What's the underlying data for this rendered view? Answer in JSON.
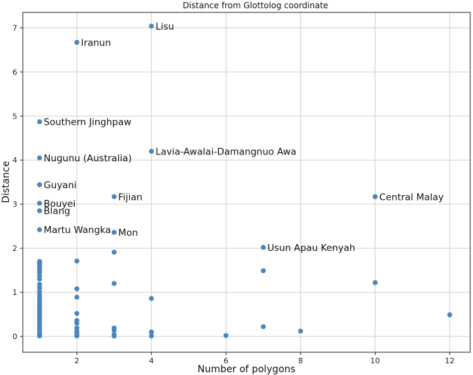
{
  "chart_data": {
    "type": "scatter",
    "title": "Distance from Glottolog coordinate",
    "xlabel": "Number of polygons",
    "ylabel": "Distance",
    "xlim": [
      0.55,
      12.55
    ],
    "ylim": [
      -0.36,
      7.35
    ],
    "xticks": [
      2,
      4,
      6,
      8,
      10,
      12
    ],
    "yticks": [
      0,
      1,
      2,
      3,
      4,
      5,
      6,
      7
    ],
    "grid": true,
    "color": "#4a86bb",
    "labeled_points": [
      {
        "x": 4,
        "y": 7.04,
        "label": "Lisu"
      },
      {
        "x": 2,
        "y": 6.67,
        "label": "Iranun"
      },
      {
        "x": 1,
        "y": 4.87,
        "label": "Southern Jinghpaw"
      },
      {
        "x": 4,
        "y": 4.2,
        "label": "Lavia-Awalai-Damangnuo Awa"
      },
      {
        "x": 1,
        "y": 4.05,
        "label": "Nugunu (Australia)"
      },
      {
        "x": 1,
        "y": 3.44,
        "label": "Guyani"
      },
      {
        "x": 3,
        "y": 3.17,
        "label": "Fijian"
      },
      {
        "x": 10,
        "y": 3.17,
        "label": "Central Malay"
      },
      {
        "x": 1,
        "y": 3.02,
        "label": "Bouyei"
      },
      {
        "x": 1,
        "y": 2.85,
        "label": "Blang"
      },
      {
        "x": 1,
        "y": 2.42,
        "label": "Martu Wangka"
      },
      {
        "x": 3,
        "y": 2.36,
        "label": "Mon"
      },
      {
        "x": 7,
        "y": 2.02,
        "label": "Usun Apau Kenyah"
      }
    ],
    "points": [
      {
        "x": 1,
        "y": 1.7
      },
      {
        "x": 1,
        "y": 1.66
      },
      {
        "x": 1,
        "y": 1.62
      },
      {
        "x": 1,
        "y": 1.55
      },
      {
        "x": 1,
        "y": 1.5
      },
      {
        "x": 1,
        "y": 1.45
      },
      {
        "x": 1,
        "y": 1.38
      },
      {
        "x": 1,
        "y": 1.3
      },
      {
        "x": 1,
        "y": 1.18
      },
      {
        "x": 1,
        "y": 1.1
      },
      {
        "x": 1,
        "y": 1.02
      },
      {
        "x": 1,
        "y": 0.95
      },
      {
        "x": 1,
        "y": 0.88
      },
      {
        "x": 1,
        "y": 0.82
      },
      {
        "x": 1,
        "y": 0.76
      },
      {
        "x": 1,
        "y": 0.7
      },
      {
        "x": 1,
        "y": 0.64
      },
      {
        "x": 1,
        "y": 0.58
      },
      {
        "x": 1,
        "y": 0.52
      },
      {
        "x": 1,
        "y": 0.46
      },
      {
        "x": 1,
        "y": 0.4
      },
      {
        "x": 1,
        "y": 0.34
      },
      {
        "x": 1,
        "y": 0.28
      },
      {
        "x": 1,
        "y": 0.22
      },
      {
        "x": 1,
        "y": 0.17
      },
      {
        "x": 1,
        "y": 0.12
      },
      {
        "x": 1,
        "y": 0.08
      },
      {
        "x": 1,
        "y": 0.04
      },
      {
        "x": 1,
        "y": 0.01
      },
      {
        "x": 2,
        "y": 1.71
      },
      {
        "x": 2,
        "y": 1.08
      },
      {
        "x": 2,
        "y": 0.89
      },
      {
        "x": 2,
        "y": 0.52
      },
      {
        "x": 2,
        "y": 0.36
      },
      {
        "x": 2,
        "y": 0.3
      },
      {
        "x": 2,
        "y": 0.19
      },
      {
        "x": 2,
        "y": 0.12
      },
      {
        "x": 2,
        "y": 0.08
      },
      {
        "x": 2,
        "y": 0.04
      },
      {
        "x": 2,
        "y": 0.01
      },
      {
        "x": 3,
        "y": 1.91
      },
      {
        "x": 3,
        "y": 1.2
      },
      {
        "x": 3,
        "y": 0.19
      },
      {
        "x": 3,
        "y": 0.14
      },
      {
        "x": 3,
        "y": 0.04
      },
      {
        "x": 3,
        "y": 0.01
      },
      {
        "x": 4,
        "y": 0.86
      },
      {
        "x": 4,
        "y": 0.1
      },
      {
        "x": 4,
        "y": 0.01
      },
      {
        "x": 6,
        "y": 0.02
      },
      {
        "x": 7,
        "y": 1.49
      },
      {
        "x": 7,
        "y": 0.22
      },
      {
        "x": 8,
        "y": 0.12
      },
      {
        "x": 10,
        "y": 1.22
      },
      {
        "x": 12,
        "y": 0.49
      }
    ]
  }
}
